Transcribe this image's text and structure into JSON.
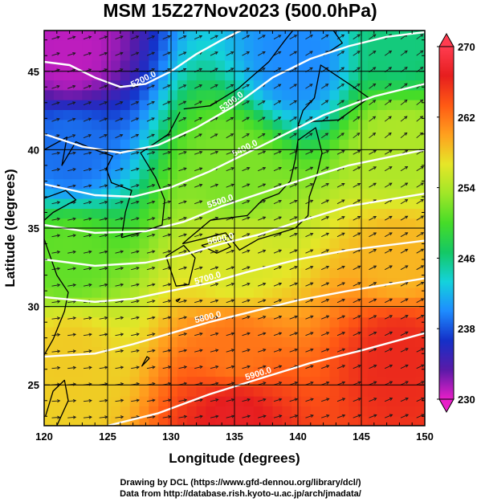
{
  "chart_data": {
    "type": "heatmap",
    "title": "MSM 15Z27Nov2023 (500.0hPa)",
    "xlabel": "Longitude (degrees)",
    "ylabel": "Latitude  (degrees)",
    "xlim": [
      120,
      150
    ],
    "ylim": [
      22.4,
      47.6
    ],
    "x_ticks": [
      120,
      125,
      130,
      135,
      140,
      145,
      150
    ],
    "y_ticks": [
      25,
      30,
      35,
      40,
      45
    ],
    "colorbar": {
      "min": 230,
      "max": 270,
      "ticks": [
        270,
        262,
        254,
        246,
        238,
        230
      ],
      "colors": [
        "#e81fc8",
        "#5a1aa8",
        "#1430c8",
        "#1e8cff",
        "#14d2dc",
        "#14c864",
        "#46dc28",
        "#a0e628",
        "#e6e628",
        "#ffa01e",
        "#ff5a14",
        "#e61e1e",
        "#ff3c50"
      ]
    },
    "temperature_anchors": [
      {
        "lon": 122,
        "lat": 46,
        "value": 231
      },
      {
        "lon": 140,
        "lat": 46,
        "value": 240
      },
      {
        "lon": 148,
        "lat": 47,
        "value": 246
      },
      {
        "lon": 122,
        "lat": 40,
        "value": 239
      },
      {
        "lon": 135,
        "lat": 38,
        "value": 252
      },
      {
        "lon": 148,
        "lat": 40,
        "value": 254
      },
      {
        "lon": 122,
        "lat": 33,
        "value": 251
      },
      {
        "lon": 135,
        "lat": 33,
        "value": 256
      },
      {
        "lon": 148,
        "lat": 33,
        "value": 259
      },
      {
        "lon": 122,
        "lat": 27,
        "value": 258
      },
      {
        "lon": 135,
        "lat": 27,
        "value": 262
      },
      {
        "lon": 148,
        "lat": 27,
        "value": 266
      },
      {
        "lon": 135,
        "lat": 23,
        "value": 267
      }
    ],
    "contours": [
      {
        "label": "5200.0",
        "points": [
          [
            120,
            45.6
          ],
          [
            122,
            45.4
          ],
          [
            124,
            44.6
          ],
          [
            126,
            44.0
          ],
          [
            128,
            44.2
          ],
          [
            130,
            45.0
          ],
          [
            132,
            46.1
          ],
          [
            134,
            47.0
          ],
          [
            135.5,
            47.6
          ]
        ]
      },
      {
        "label": "5300.0",
        "points": [
          [
            120,
            41.0
          ],
          [
            123,
            40.2
          ],
          [
            126,
            39.8
          ],
          [
            129,
            40.3
          ],
          [
            132,
            41.4
          ],
          [
            135,
            42.8
          ],
          [
            138,
            44.6
          ],
          [
            141,
            45.8
          ],
          [
            144,
            46.6
          ],
          [
            147,
            47.2
          ],
          [
            150,
            47.5
          ]
        ]
      },
      {
        "label": "5400.0",
        "points": [
          [
            120,
            37.8
          ],
          [
            124,
            37.1
          ],
          [
            127,
            37.0
          ],
          [
            130,
            37.6
          ],
          [
            133,
            38.6
          ],
          [
            136,
            39.8
          ],
          [
            139,
            41.0
          ],
          [
            142,
            42.2
          ],
          [
            146,
            43.4
          ],
          [
            150,
            44.2
          ]
        ]
      },
      {
        "label": "5500.0",
        "points": [
          [
            120,
            35.2
          ],
          [
            124,
            34.7
          ],
          [
            128,
            34.8
          ],
          [
            131,
            35.4
          ],
          [
            134,
            36.4
          ],
          [
            137,
            37.2
          ],
          [
            140,
            38.0
          ],
          [
            144,
            39.0
          ],
          [
            150,
            40.0
          ]
        ]
      },
      {
        "label": "5600.0",
        "points": [
          [
            120,
            33.0
          ],
          [
            124,
            32.6
          ],
          [
            128,
            32.8
          ],
          [
            131,
            33.3
          ],
          [
            134,
            34.0
          ],
          [
            137,
            34.6
          ],
          [
            140,
            35.4
          ],
          [
            144,
            36.4
          ],
          [
            150,
            37.2
          ]
        ]
      },
      {
        "label": "5700.0",
        "points": [
          [
            120,
            30.6
          ],
          [
            124,
            30.3
          ],
          [
            127,
            30.5
          ],
          [
            130,
            31.0
          ],
          [
            133,
            31.5
          ],
          [
            136,
            32.2
          ],
          [
            140,
            33.0
          ],
          [
            144,
            33.6
          ],
          [
            150,
            34.2
          ]
        ]
      },
      {
        "label": "5800.0",
        "points": [
          [
            120,
            26.8
          ],
          [
            124,
            27.0
          ],
          [
            127,
            27.6
          ],
          [
            130,
            28.3
          ],
          [
            133,
            29.0
          ],
          [
            136,
            29.6
          ],
          [
            140,
            30.4
          ],
          [
            144,
            31.0
          ],
          [
            150,
            31.8
          ]
        ]
      },
      {
        "label": "5900.0",
        "points": [
          [
            125,
            22.4
          ],
          [
            129,
            23.2
          ],
          [
            133,
            24.4
          ],
          [
            137,
            25.4
          ],
          [
            141,
            26.4
          ],
          [
            145,
            27.2
          ],
          [
            150,
            28.3
          ]
        ]
      }
    ]
  },
  "credits": {
    "line1": "Drawing by DCL (https://www.gfd-dennou.org/library/dcl/)",
    "line2": "Data from http://database.rish.kyoto-u.ac.jp/arch/jmadata/"
  }
}
